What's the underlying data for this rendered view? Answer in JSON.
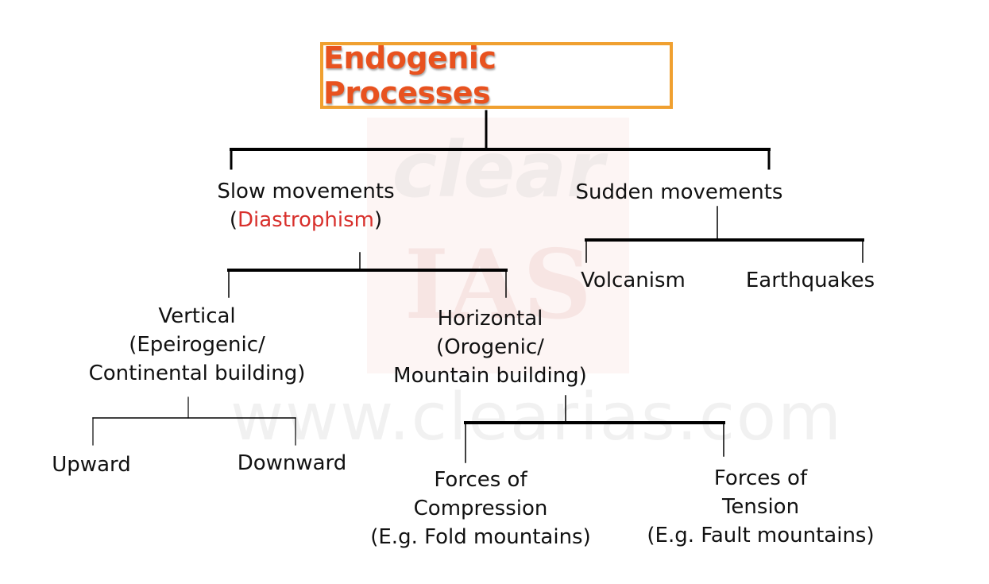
{
  "diagram": {
    "title": "Endogenic Processes",
    "slow": {
      "line1": "Slow movements",
      "open_paren": "(",
      "term": "Diastrophism",
      "close_paren": ")"
    },
    "sudden": {
      "label": "Sudden movements"
    },
    "vertical": {
      "line1": "Vertical",
      "line2": "(Epeirogenic/",
      "line3": "Continental building)"
    },
    "horizontal": {
      "line1": "Horizontal",
      "line2": "(Orogenic/",
      "line3": "Mountain building)"
    },
    "volcanism": {
      "label": "Volcanism"
    },
    "earthquakes": {
      "label": "Earthquakes"
    },
    "upward": {
      "label": "Upward"
    },
    "downward": {
      "label": "Downward"
    },
    "compression": {
      "line1": "Forces of",
      "line2": "Compression",
      "line3": "(E.g. Fold mountains)"
    },
    "tension": {
      "line1": "Forces of",
      "line2": "Tension",
      "line3": "(E.g. Fault mountains)"
    }
  },
  "watermark": {
    "logo_text": "clear",
    "logo_text2": "IAS",
    "url": "www.clearias.com"
  },
  "colors": {
    "title": "#e8521f",
    "title_border": "#f0a030",
    "highlight": "#d8302c",
    "lines": "#000000"
  }
}
